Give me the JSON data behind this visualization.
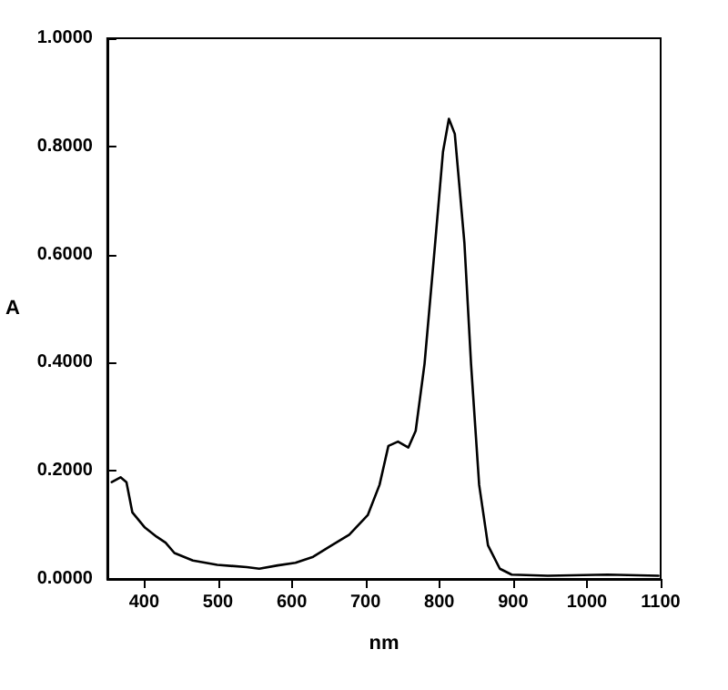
{
  "chart_data": {
    "type": "line",
    "xlabel": "nm",
    "ylabel": "A",
    "x": [
      356,
      368,
      376,
      384,
      401,
      417,
      429,
      441,
      466,
      499,
      539,
      556,
      581,
      605,
      629,
      654,
      678,
      703,
      719,
      731,
      744,
      758,
      768,
      780,
      793,
      805,
      813,
      821,
      834,
      843,
      854,
      866,
      882,
      898,
      947,
      1028,
      1097
    ],
    "series": [
      {
        "color": "#000000",
        "values": [
          0.179,
          0.188,
          0.179,
          0.123,
          0.095,
          0.078,
          0.067,
          0.048,
          0.034,
          0.026,
          0.022,
          0.019,
          0.025,
          0.03,
          0.041,
          0.062,
          0.082,
          0.118,
          0.174,
          0.246,
          0.254,
          0.243,
          0.274,
          0.398,
          0.599,
          0.79,
          0.851,
          0.823,
          0.622,
          0.398,
          0.174,
          0.062,
          0.019,
          0.008,
          0.006,
          0.008,
          0.006
        ]
      }
    ],
    "xlim": [
      350,
      1100
    ],
    "xticks": [
      400,
      500,
      600,
      700,
      800,
      900,
      1000,
      1100
    ],
    "ylim": [
      0,
      1
    ],
    "yticks": [
      {
        "value": 0,
        "label": "0.0000"
      },
      {
        "value": 0.2,
        "label": "0.2000"
      },
      {
        "value": 0.4,
        "label": "0.4000"
      },
      {
        "value": 0.6,
        "label": "0.6000"
      },
      {
        "value": 0.8,
        "label": "0.8000"
      },
      {
        "value": 1,
        "label": "1.0000"
      }
    ],
    "marker": "none",
    "line_style": "solid"
  }
}
